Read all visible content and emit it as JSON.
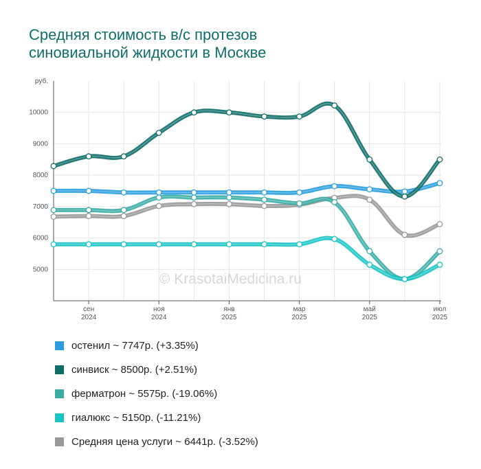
{
  "title_lines": [
    "Средняя стоимость в/с протезов",
    "синовиальной жидкости в Москве"
  ],
  "watermark": "© KrasotaiMedicina.ru",
  "chart_data": {
    "type": "line",
    "ylabel": "руб.",
    "ylim": [
      4000,
      11000
    ],
    "yticks": [
      5000,
      6000,
      7000,
      8000,
      9000,
      10000
    ],
    "x": [
      "2024-08",
      "2024-09",
      "2024-10",
      "2024-11",
      "2024-12",
      "2025-01",
      "2025-02",
      "2025-03",
      "2025-04",
      "2025-05",
      "2025-06",
      "2025-07"
    ],
    "xtick_labels": [
      {
        "index": 1,
        "month": "сен",
        "year": "2024"
      },
      {
        "index": 3,
        "month": "ноя",
        "year": "2024"
      },
      {
        "index": 5,
        "month": "янв",
        "year": "2025"
      },
      {
        "index": 7,
        "month": "мар",
        "year": "2025"
      },
      {
        "index": 9,
        "month": "май",
        "year": "2025"
      },
      {
        "index": 11,
        "month": "июл",
        "year": "2025"
      }
    ],
    "grid": true,
    "legend_position": "bottom-left",
    "series": [
      {
        "name": "остенил",
        "legend": "остенил ~ 7747р. (+3.35%)",
        "color": "#2a9ee0",
        "values": [
          7500,
          7500,
          7450,
          7450,
          7450,
          7450,
          7450,
          7450,
          7650,
          7550,
          7480,
          7747
        ]
      },
      {
        "name": "синвиск",
        "legend": "синвиск ~ 8500р. (+2.51%)",
        "color": "#0f6e68",
        "values": [
          8290,
          8600,
          8600,
          9350,
          10000,
          10000,
          9870,
          9870,
          10220,
          8500,
          7320,
          8500
        ]
      },
      {
        "name": "ферматрон",
        "legend": "ферматрон ~ 5575р. (-19.06%)",
        "color": "#3aada5",
        "values": [
          6890,
          6890,
          6890,
          7290,
          7290,
          7290,
          7220,
          7100,
          7140,
          5580,
          4690,
          5575
        ]
      },
      {
        "name": "гиалюкс",
        "legend": "гиалюкс ~ 5150р. (-11.21%)",
        "color": "#18c4c4",
        "values": [
          5800,
          5800,
          5800,
          5800,
          5800,
          5800,
          5800,
          5800,
          5970,
          5150,
          4690,
          5150
        ]
      },
      {
        "name": "Средняя цена услуги",
        "legend": "Средняя цена услуги ~ 6441р. (-3.52%)",
        "color": "#999999",
        "values": [
          6680,
          6700,
          6700,
          7020,
          7080,
          7080,
          7020,
          7060,
          7280,
          7220,
          6100,
          6441
        ]
      }
    ]
  }
}
